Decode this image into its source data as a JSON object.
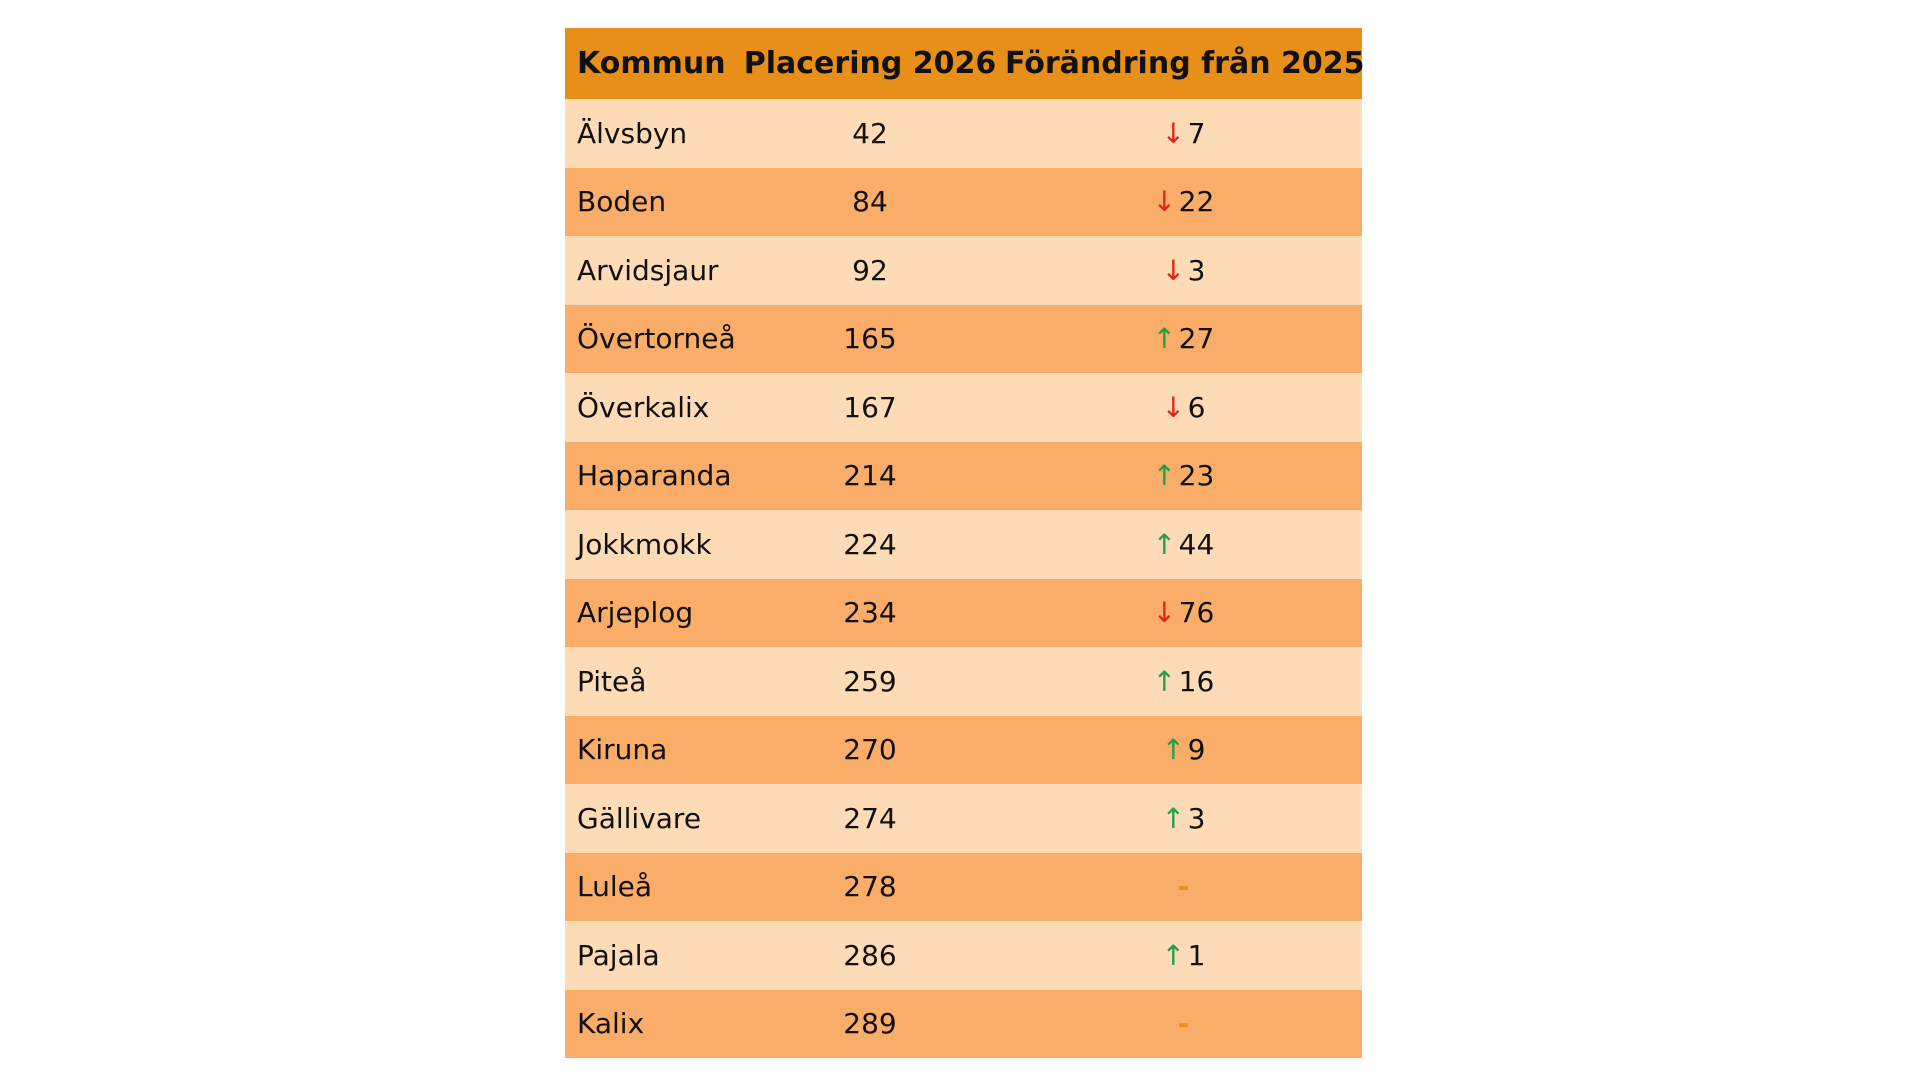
{
  "table": {
    "headers": {
      "name": "Kommun",
      "rank": "Placering 2026",
      "change": "Förändring från 2025"
    },
    "rows": [
      {
        "name": "Älvsbyn",
        "rank": "42",
        "direction": "down",
        "change": "7"
      },
      {
        "name": "Boden",
        "rank": "84",
        "direction": "down",
        "change": "22"
      },
      {
        "name": "Arvidsjaur",
        "rank": "92",
        "direction": "down",
        "change": "3"
      },
      {
        "name": "Övertorneå",
        "rank": "165",
        "direction": "up",
        "change": "27"
      },
      {
        "name": "Överkalix",
        "rank": "167",
        "direction": "down",
        "change": "6"
      },
      {
        "name": "Haparanda",
        "rank": "214",
        "direction": "up",
        "change": "23"
      },
      {
        "name": "Jokkmokk",
        "rank": "224",
        "direction": "up",
        "change": "44"
      },
      {
        "name": "Arjeplog",
        "rank": "234",
        "direction": "down",
        "change": "76"
      },
      {
        "name": "Piteå",
        "rank": "259",
        "direction": "up",
        "change": "16"
      },
      {
        "name": "Kiruna",
        "rank": "270",
        "direction": "up",
        "change": "9"
      },
      {
        "name": "Gällivare",
        "rank": "274",
        "direction": "up",
        "change": "3"
      },
      {
        "name": "Luleå",
        "rank": "278",
        "direction": "none",
        "change": "-"
      },
      {
        "name": "Pajala",
        "rank": "286",
        "direction": "up",
        "change": "1"
      },
      {
        "name": "Kalix",
        "rank": "289",
        "direction": "none",
        "change": "-"
      }
    ]
  },
  "colors": {
    "header": "#e88f1a",
    "row_light": "#fddbb7",
    "row_dark": "#f9ad68",
    "arrow_down": "#e0251b",
    "arrow_up": "#22a045",
    "dash": "#e88f1a"
  },
  "icons": {
    "up": "arrow-up-icon",
    "down": "arrow-down-icon"
  }
}
